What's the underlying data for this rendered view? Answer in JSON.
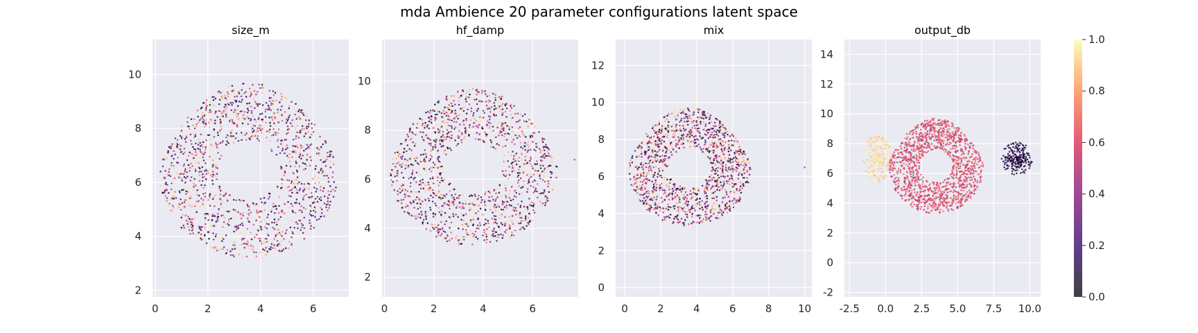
{
  "figure": {
    "title": "mda Ambience 20 parameter configurations latent space"
  },
  "colors": {
    "panel_bg": "#eaeaf2",
    "grid": "#ffffff",
    "colormap": "magma",
    "colormap_stops": [
      "#000004",
      "#3b0f70",
      "#8c2981",
      "#de4968",
      "#fe9f6d",
      "#fcfdbf"
    ]
  },
  "chart_data": [
    {
      "type": "scatter",
      "title": "size_m",
      "xlim": [
        -0.1,
        7.35
      ],
      "ylim": [
        1.75,
        11.3
      ],
      "xticks": [
        0,
        2,
        4,
        6
      ],
      "yticks": [
        2,
        4,
        6,
        8,
        10
      ],
      "grid": true,
      "distribution": "single blob, x 0.2–7.0, y 3.2–9.7, colors mixed 0–1",
      "clusters": [
        {
          "center": [
            3.55,
            6.45
          ],
          "radius_x": 3.4,
          "radius_y": 3.25,
          "color_range": [
            0,
            1
          ]
        }
      ]
    },
    {
      "type": "scatter",
      "title": "hf_damp",
      "xlim": [
        -0.1,
        7.85
      ],
      "ylim": [
        1.2,
        11.7
      ],
      "xticks": [
        0,
        2,
        4,
        6
      ],
      "yticks": [
        2,
        4,
        6,
        8,
        10
      ],
      "grid": true,
      "distribution": "single blob, x 0.2–7.0, y 3.3–9.7, colors mixed 0–1, one outlier near (7.7, 6.8)",
      "clusters": [
        {
          "center": [
            3.6,
            6.5
          ],
          "radius_x": 3.4,
          "radius_y": 3.2,
          "color_range": [
            0,
            1
          ]
        }
      ],
      "outliers": [
        [
          7.7,
          6.8
        ]
      ]
    },
    {
      "type": "scatter",
      "title": "mix",
      "xlim": [
        -0.5,
        10.4
      ],
      "ylim": [
        -0.5,
        13.4
      ],
      "xticks": [
        0,
        2,
        4,
        6,
        8,
        10
      ],
      "yticks": [
        0,
        2,
        4,
        6,
        8,
        10,
        12
      ],
      "grid": true,
      "distribution": "single blob, x 0.2–7.0, y 3.3–9.7, colors mixed 0–1, one outlier near (10.0, 6.5)",
      "clusters": [
        {
          "center": [
            3.6,
            6.5
          ],
          "radius_x": 3.4,
          "radius_y": 3.2,
          "color_range": [
            0,
            1
          ]
        }
      ],
      "outliers": [
        [
          10.0,
          6.5
        ]
      ]
    },
    {
      "type": "scatter",
      "title": "output_db",
      "xlim": [
        -2.85,
        10.75
      ],
      "ylim": [
        -2.3,
        15.0
      ],
      "xticks": [
        -2.5,
        0.0,
        2.5,
        5.0,
        7.5,
        10.0
      ],
      "yticks": [
        -2,
        0,
        2,
        4,
        6,
        8,
        10,
        12,
        14
      ],
      "grid": true,
      "distribution": "three clusters: pale yellow near (-0.6, 7.0); magenta near (3.5, 6.5); dark purple near (9.1, 7.0)",
      "clusters": [
        {
          "center": [
            -0.6,
            7.0
          ],
          "radius_x": 1.0,
          "radius_y": 1.6,
          "color_range": [
            0.85,
            1.0
          ]
        },
        {
          "center": [
            3.5,
            6.5
          ],
          "radius_x": 3.3,
          "radius_y": 3.2,
          "color_range": [
            0.5,
            0.7
          ]
        },
        {
          "center": [
            9.1,
            7.0
          ],
          "radius_x": 1.1,
          "radius_y": 1.1,
          "color_range": [
            0.0,
            0.2
          ]
        }
      ]
    }
  ],
  "colorbar": {
    "min": 0.0,
    "max": 1.0,
    "ticks": [
      "0.0",
      "0.2",
      "0.4",
      "0.6",
      "0.8",
      "1.0"
    ]
  }
}
